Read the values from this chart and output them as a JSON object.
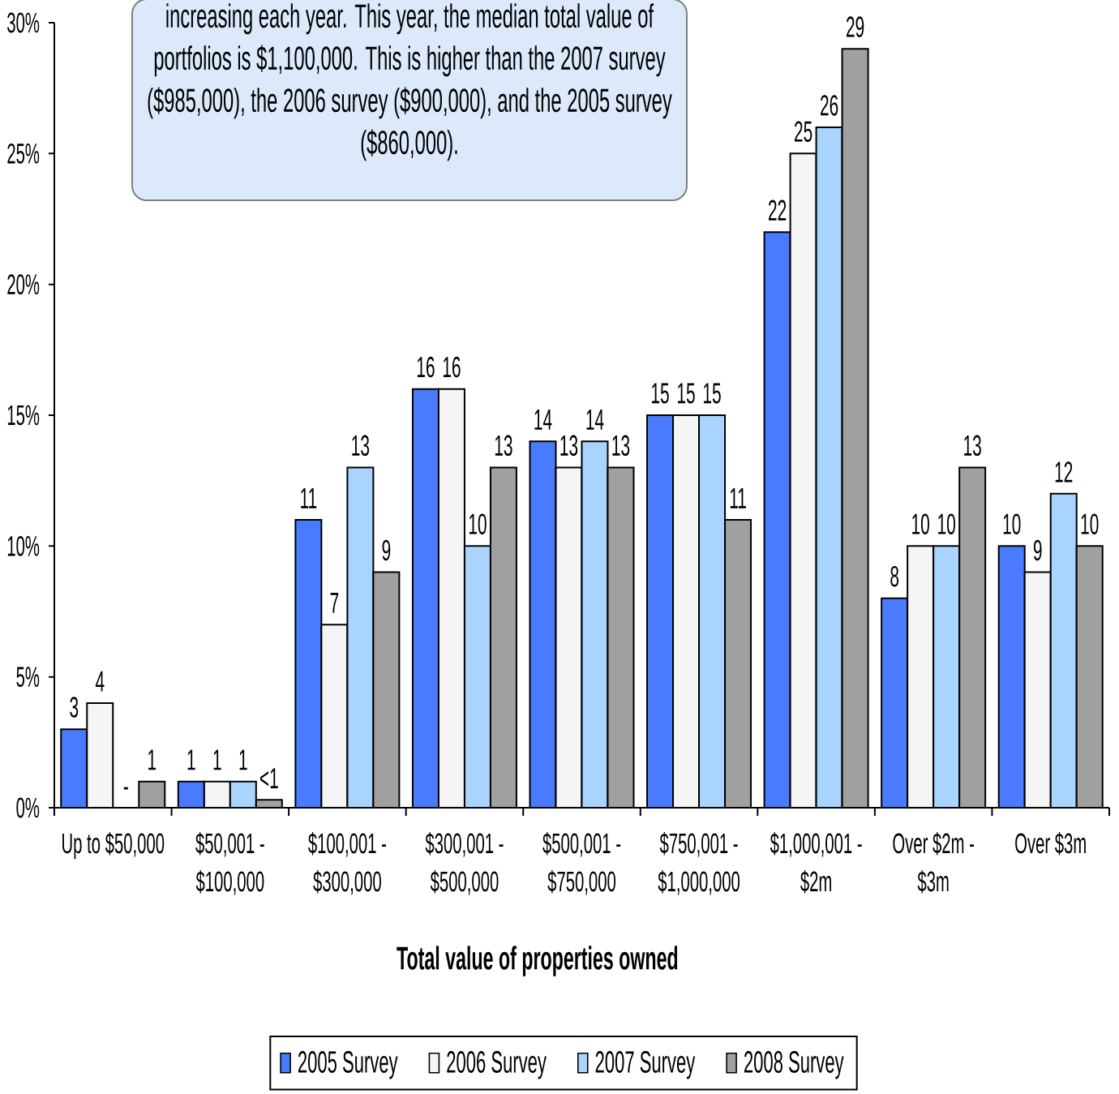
{
  "chart_data": {
    "type": "bar",
    "categories": [
      "Up to $50,000",
      "$50,001 - $100,000",
      "$100,001 - $300,000",
      "$300,001 - $500,000",
      "$500,001 - $750,000",
      "$750,001 - $1,000,000",
      "$1,000,001 - $2m",
      "Over $2m - $3m",
      "Over $3m"
    ],
    "series": [
      {
        "name": "2005 Survey",
        "color": "#4a7bff",
        "values": [
          3,
          1,
          11,
          16,
          14,
          15,
          22,
          8,
          10
        ],
        "value_labels": [
          "3",
          "1",
          "11",
          "16",
          "14",
          "15",
          "22",
          "8",
          "10"
        ]
      },
      {
        "name": "2006 Survey",
        "color": "#f5f5f5",
        "values": [
          4,
          1,
          7,
          16,
          13,
          15,
          25,
          10,
          9
        ],
        "value_labels": [
          "4",
          "1",
          "7",
          "16",
          "13",
          "15",
          "25",
          "10",
          "9"
        ]
      },
      {
        "name": "2007 Survey",
        "color": "#a8d4ff",
        "values": [
          0,
          1,
          13,
          10,
          14,
          15,
          26,
          10,
          12
        ],
        "value_labels": [
          "-",
          "1",
          "13",
          "10",
          "14",
          "15",
          "26",
          "10",
          "12"
        ]
      },
      {
        "name": "2008 Survey",
        "color": "#a0a0a0",
        "values": [
          1,
          0.3,
          9,
          13,
          13,
          11,
          29,
          13,
          10
        ],
        "value_labels": [
          "1",
          "<1",
          "9",
          "13",
          "13",
          "11",
          "29",
          "13",
          "10"
        ]
      }
    ],
    "xlabel": "Total value of properties owned",
    "ylim": [
      0,
      30
    ],
    "yticks": [
      {
        "value": 0,
        "label": "0%"
      },
      {
        "value": 5,
        "label": "5%"
      },
      {
        "value": 10,
        "label": "10%"
      },
      {
        "value": 15,
        "label": "15%"
      },
      {
        "value": 20,
        "label": "20%"
      },
      {
        "value": 25,
        "label": "25%"
      },
      {
        "value": 30,
        "label": "30%"
      }
    ],
    "legend": "bottom",
    "annotations": [
      "increasing each year. This year, the median total value of portfolios is $1,100,000. This is higher than the 2007 survey ($985,000), the 2006 survey ($900,000), and the 2005 survey ($860,000)."
    ]
  }
}
